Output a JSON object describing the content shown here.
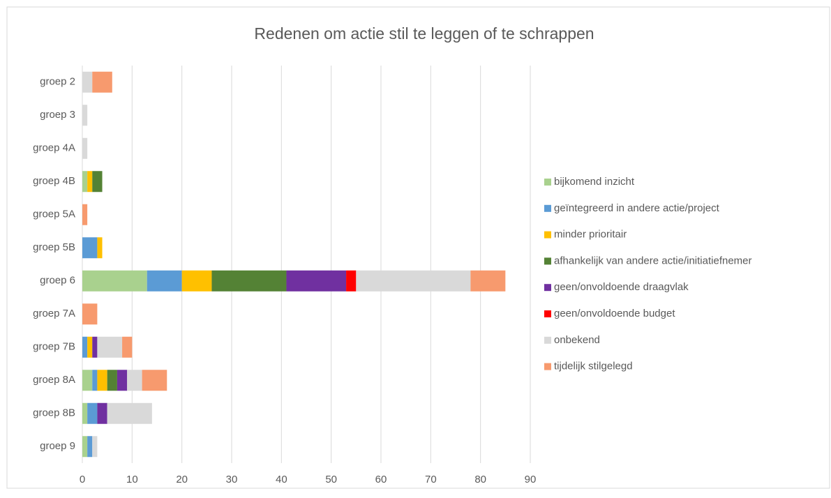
{
  "chart_data": {
    "type": "stacked-barh",
    "title": "Redenen om actie stil te leggen of te schrappen",
    "categories": [
      "groep 2",
      "groep 3",
      "groep 4A",
      "groep 4B",
      "groep 5A",
      "groep 5B",
      "groep 6",
      "groep 7A",
      "groep 7B",
      "groep 8A",
      "groep 8B",
      "groep 9"
    ],
    "series": [
      {
        "name": "bijkomend inzicht",
        "color": "#a9d18e",
        "values": [
          0,
          0,
          0,
          1,
          0,
          0,
          13,
          0,
          0,
          2,
          1,
          1
        ]
      },
      {
        "name": "geïntegreerd in andere actie/project",
        "color": "#5b9bd5",
        "values": [
          0,
          0,
          0,
          0,
          0,
          3,
          7,
          0,
          1,
          1,
          2,
          1
        ]
      },
      {
        "name": "minder prioritair",
        "color": "#ffc000",
        "values": [
          0,
          0,
          0,
          1,
          0,
          1,
          6,
          0,
          1,
          2,
          0,
          0
        ]
      },
      {
        "name": "afhankelijk van andere actie/initiatiefnemer",
        "color": "#548235",
        "values": [
          0,
          0,
          0,
          2,
          0,
          0,
          15,
          0,
          0,
          2,
          0,
          0
        ]
      },
      {
        "name": "geen/onvoldoende draagvlak",
        "color": "#7030a0",
        "values": [
          0,
          0,
          0,
          0,
          0,
          0,
          12,
          0,
          1,
          2,
          2,
          0
        ]
      },
      {
        "name": "geen/onvoldoende budget",
        "color": "#ff0000",
        "values": [
          0,
          0,
          0,
          0,
          0,
          0,
          2,
          0,
          0,
          0,
          0,
          0
        ]
      },
      {
        "name": "onbekend",
        "color": "#d9d9d9",
        "values": [
          2,
          1,
          1,
          0,
          0,
          0,
          23,
          0,
          5,
          3,
          9,
          1
        ]
      },
      {
        "name": "tijdelijk stilgelegd",
        "color": "#f79a6e",
        "values": [
          4,
          0,
          0,
          0,
          1,
          0,
          7,
          3,
          2,
          5,
          0,
          0
        ]
      }
    ],
    "xlim": [
      0,
      90
    ],
    "xticks": [
      0,
      10,
      20,
      30,
      40,
      50,
      60,
      70,
      80,
      90
    ],
    "grid": true,
    "legend": "right"
  }
}
